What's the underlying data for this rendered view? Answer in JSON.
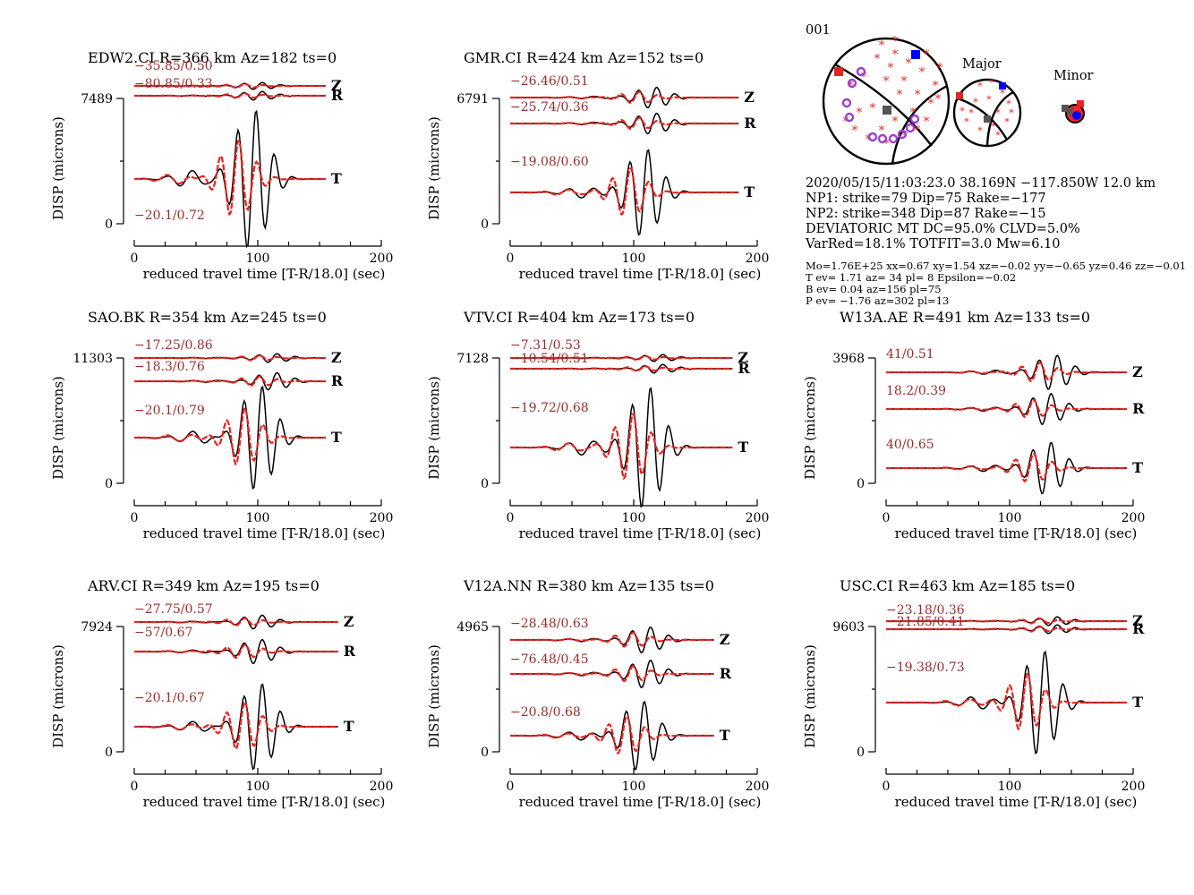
{
  "chart_data": [
    {
      "type": "line",
      "title": "EDW2.CI R=366 km Az=182 ts=0",
      "ymax_label": "7489",
      "ylabel": "DISP (microns)",
      "xlabel": "reduced travel time [T-R/18.0] (sec)",
      "xlim": [
        0,
        200
      ],
      "xticks": [
        "0",
        "100",
        "200"
      ],
      "traces": [
        {
          "comp": "Z",
          "label": "−35.85/0.50"
        },
        {
          "comp": "R",
          "label": "−80.85/0.33"
        },
        {
          "comp": "T",
          "label": "−20.1/0.72"
        }
      ]
    },
    {
      "type": "line",
      "title": "GMR.CI R=424 km Az=152 ts=0",
      "ymax_label": "6791",
      "ylabel": "DISP (microns)",
      "xlabel": "reduced travel time [T-R/18.0] (sec)",
      "xlim": [
        0,
        200
      ],
      "xticks": [
        "0",
        "100",
        "200"
      ],
      "traces": [
        {
          "comp": "Z",
          "label": "−26.46/0.51"
        },
        {
          "comp": "R",
          "label": "−25.74/0.36"
        },
        {
          "comp": "T",
          "label": "−19.08/0.60"
        }
      ]
    },
    {
      "type": "line",
      "title": "SAO.BK R=354 km Az=245 ts=0",
      "ymax_label": "11303",
      "ylabel": "DISP (microns)",
      "xlabel": "reduced travel time [T-R/18.0] (sec)",
      "xlim": [
        0,
        200
      ],
      "xticks": [
        "0",
        "100",
        "200"
      ],
      "traces": [
        {
          "comp": "Z",
          "label": "−17.25/0.86"
        },
        {
          "comp": "R",
          "label": "−18.3/0.76"
        },
        {
          "comp": "T",
          "label": "−20.1/0.79"
        }
      ]
    },
    {
      "type": "line",
      "title": "VTV.CI R=404 km Az=173 ts=0",
      "ymax_label": "7128",
      "ylabel": "DISP (microns)",
      "xlabel": "reduced travel time [T-R/18.0] (sec)",
      "xlim": [
        0,
        200
      ],
      "xticks": [
        "0",
        "100",
        "200"
      ],
      "traces": [
        {
          "comp": "Z",
          "label": "−7.31/0.53"
        },
        {
          "comp": "R",
          "label": "−10.54/0.51"
        },
        {
          "comp": "T",
          "label": "−19.72/0.68"
        }
      ]
    },
    {
      "type": "line",
      "title": "W13A.AE R=491 km Az=133 ts=0",
      "ymax_label": "3968",
      "ylabel": "DISP (microns)",
      "xlabel": "reduced travel time [T-R/18.0] (sec)",
      "xlim": [
        0,
        200
      ],
      "xticks": [
        "0",
        "100",
        "200"
      ],
      "traces": [
        {
          "comp": "Z",
          "label": "41/0.51"
        },
        {
          "comp": "R",
          "label": "18.2/0.39"
        },
        {
          "comp": "T",
          "label": "40/0.65"
        }
      ]
    },
    {
      "type": "line",
      "title": "ARV.CI R=349 km Az=195 ts=0",
      "ymax_label": "7924",
      "ylabel": "DISP (microns)",
      "xlabel": "reduced travel time [T-R/18.0] (sec)",
      "xlim": [
        0,
        200
      ],
      "xticks": [
        "0",
        "100",
        "200"
      ],
      "traces": [
        {
          "comp": "Z",
          "label": "−27.75/0.57"
        },
        {
          "comp": "R",
          "label": "−57/0.67"
        },
        {
          "comp": "T",
          "label": "−20.1/0.67"
        }
      ]
    },
    {
      "type": "line",
      "title": "V12A.NN R=380 km Az=135 ts=0",
      "ymax_label": "4965",
      "ylabel": "DISP (microns)",
      "xlabel": "reduced travel time [T-R/18.0] (sec)",
      "xlim": [
        0,
        200
      ],
      "xticks": [
        "0",
        "100",
        "200"
      ],
      "traces": [
        {
          "comp": "Z",
          "label": "−28.48/0.63"
        },
        {
          "comp": "R",
          "label": "−76.48/0.45"
        },
        {
          "comp": "T",
          "label": "−20.8/0.68"
        }
      ]
    },
    {
      "type": "line",
      "title": "USC.CI R=463 km Az=185 ts=0",
      "ymax_label": "9603",
      "ylabel": "DISP (microns)",
      "xlabel": "reduced travel time [T-R/18.0] (sec)",
      "xlim": [
        0,
        200
      ],
      "xticks": [
        "0",
        "100",
        "200"
      ],
      "traces": [
        {
          "comp": "Z",
          "label": "−23.18/0.36"
        },
        {
          "comp": "R",
          "label": "−21.85/0.41"
        },
        {
          "comp": "T",
          "label": "−19.38/0.73"
        }
      ]
    }
  ],
  "event": {
    "id": "001",
    "major_label": "Major",
    "minor_label": "Minor",
    "lines": [
      "2020/05/15/11:03:23.0 38.169N −117.850W 12.0 km",
      "NP1: strike=79 Dip=75 Rake=−177",
      "NP2: strike=348 Dip=87 Rake=−15",
      "DEVIATORIC MT DC=95.0% CLVD=5.0%",
      "VarRed=18.1% TOTFIT=3.0 Mw=6.10"
    ],
    "small_lines": [
      "Mo=1.76E+25 xx=0.67 xy=1.54 xz=−0.02 yy=−0.65 yz=0.46 zz=−0.01",
      "T ev=  1.71 az= 34 pl= 8 Epsilon=−0.02",
      "B ev=  0.04 az=156 pl=75",
      "P ev= −1.76 az=302 pl=13"
    ]
  },
  "colors": {
    "observed": "#000000",
    "synthetic": "#e8231f",
    "label": "#9b2c2c",
    "positive_dot": "#e8231f",
    "station_ring": "#9a40d0",
    "t_axis": "#ff0000",
    "p_axis": "#0000ff",
    "b_axis": "#555555"
  }
}
